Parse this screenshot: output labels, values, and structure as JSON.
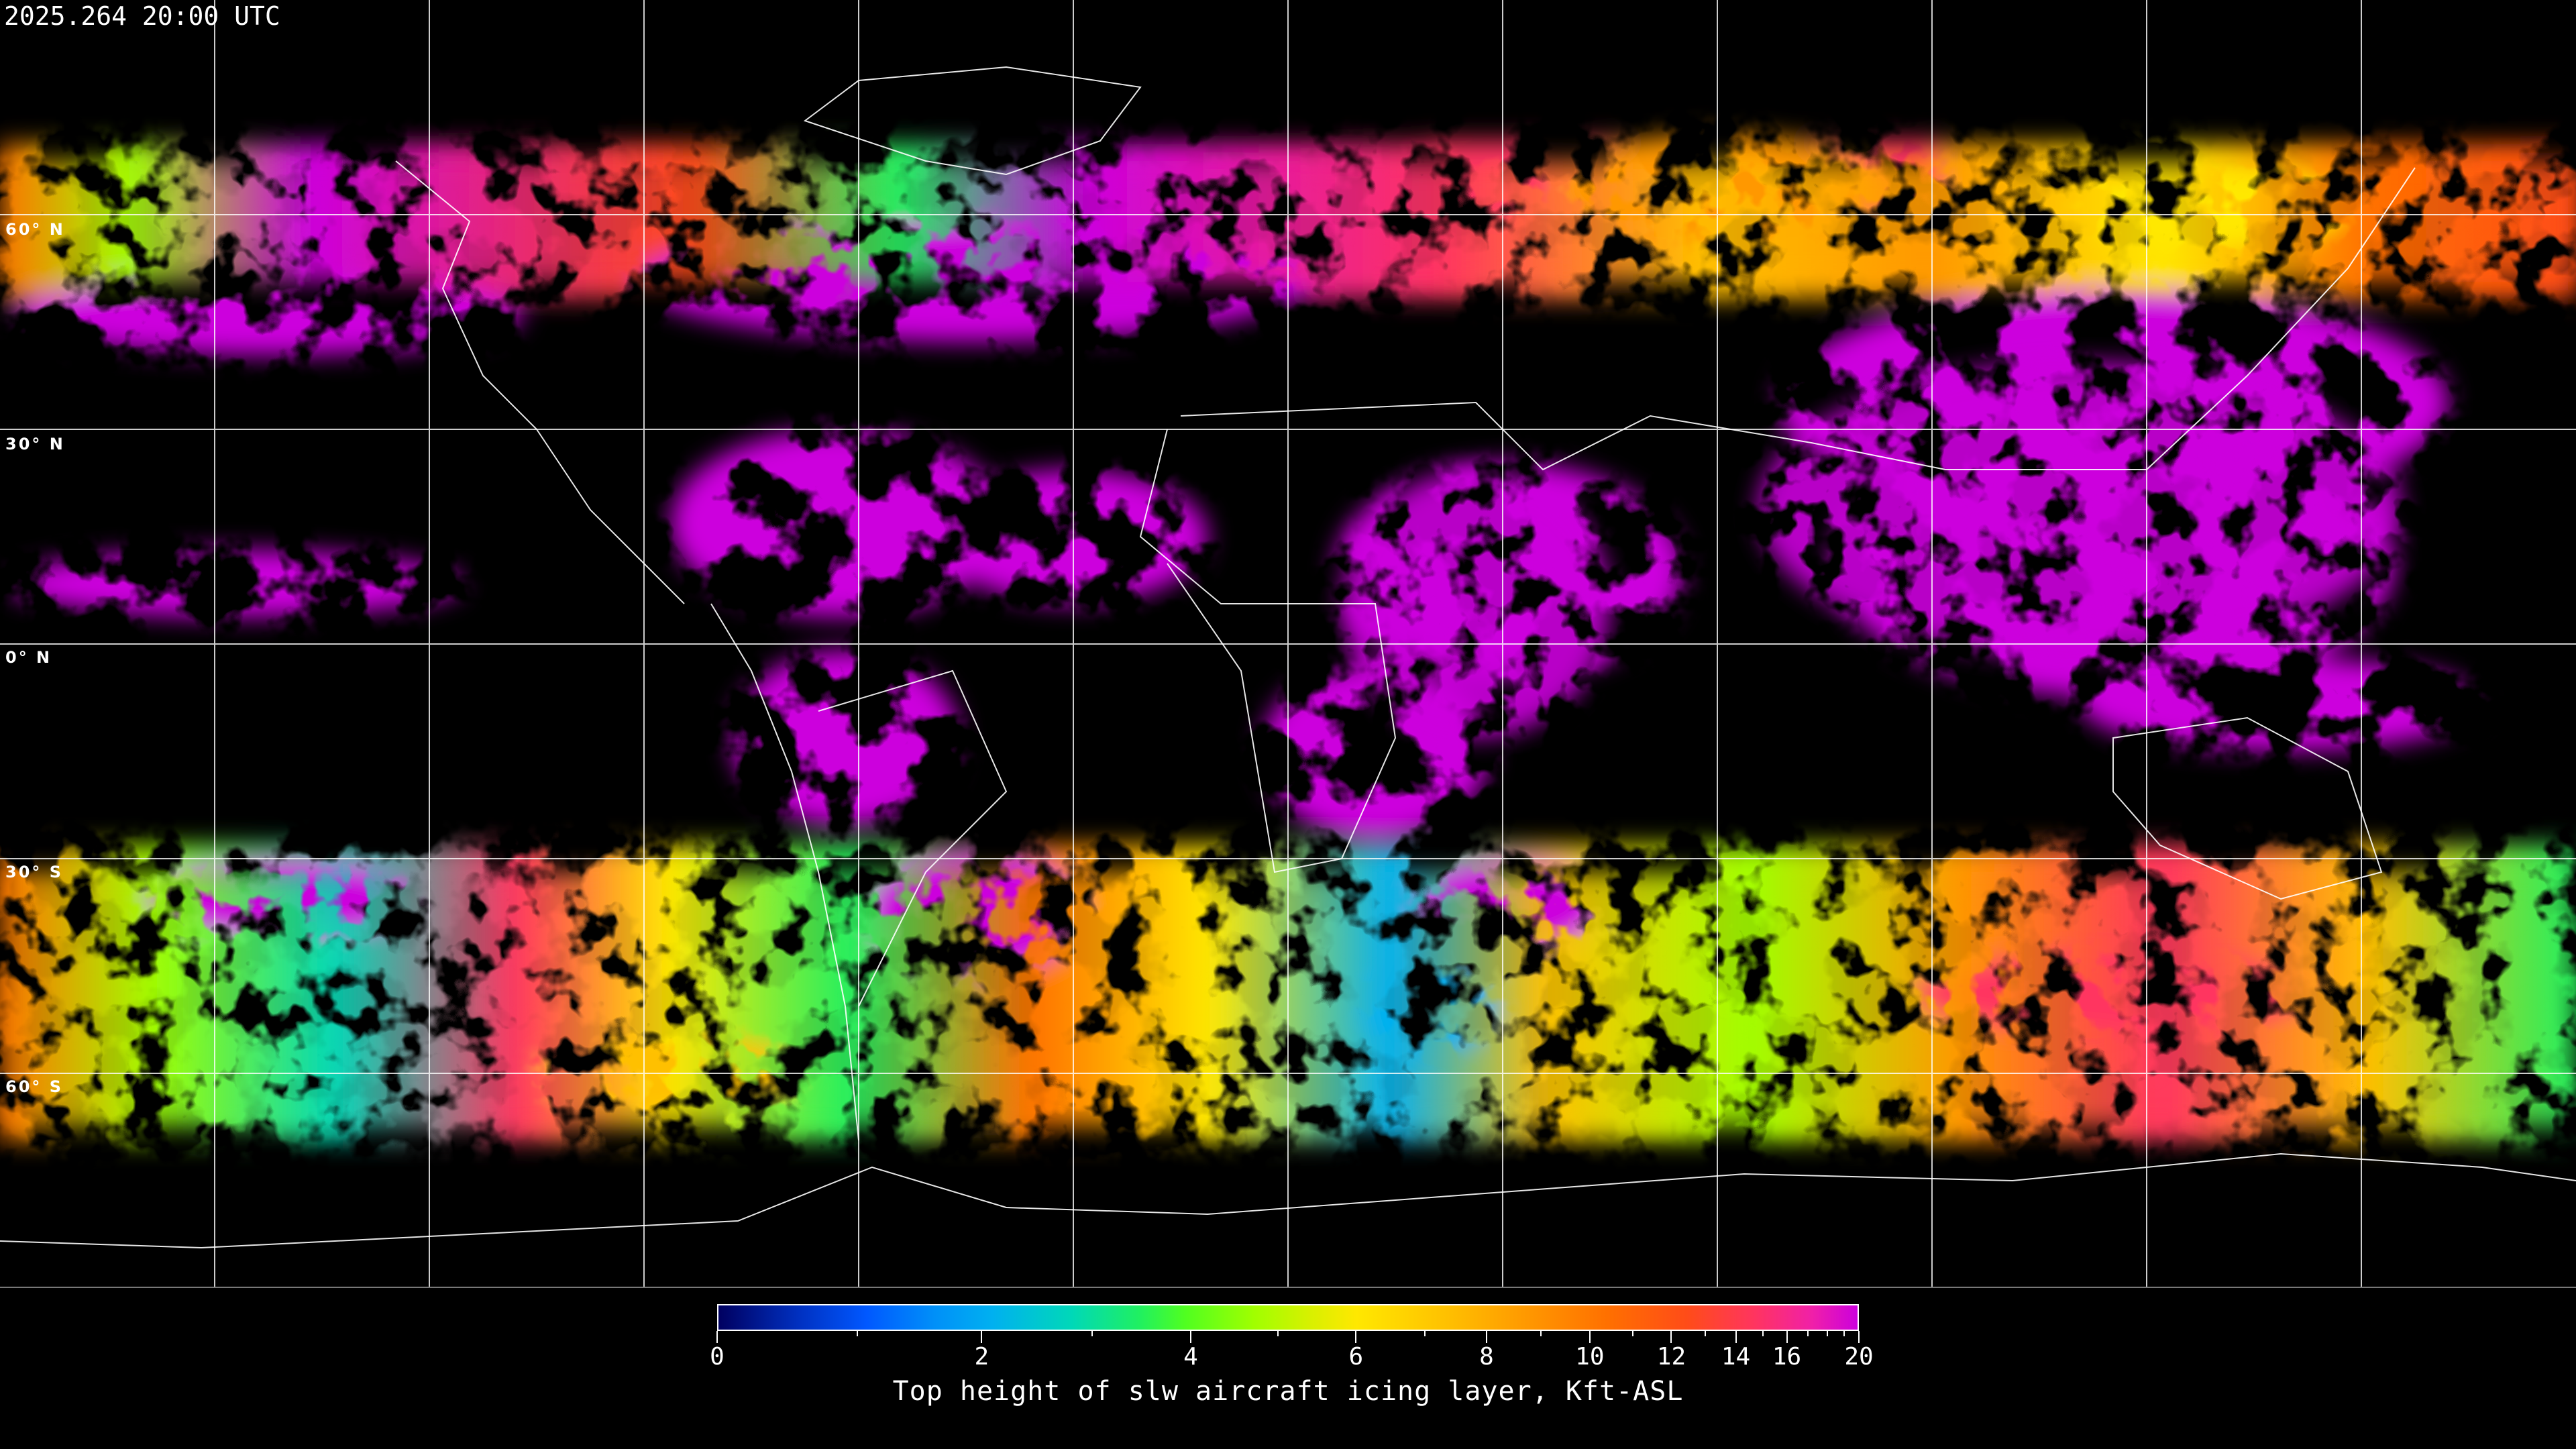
{
  "header": {
    "timestamp": "2025.264 20:00 UTC"
  },
  "map": {
    "projection": "equirectangular",
    "graticule_spacing_deg": 30,
    "latitude_labels": [
      "60° N",
      "30° N",
      "0° N",
      "30° S",
      "60° S"
    ],
    "gridline_color": "#ffffff",
    "coastline_color": "#ffffff",
    "background_color": "#000000"
  },
  "colorbar": {
    "title": "Top height of slw aircraft icing layer, Kft-ASL",
    "range": [
      0,
      20
    ],
    "major_ticks": [
      "0",
      "2",
      "4",
      "6",
      "8",
      "10",
      "12",
      "14",
      "16",
      "20"
    ],
    "minor_ticks": [
      1,
      3,
      5,
      7,
      9,
      11,
      13,
      15,
      17,
      18,
      19
    ],
    "colors": [
      "#000060",
      "#0058ff",
      "#00b0f0",
      "#20f060",
      "#a0ff00",
      "#ffe800",
      "#ffc000",
      "#ff7000",
      "#ff4c18",
      "#ff3460",
      "#cc00dd"
    ]
  }
}
